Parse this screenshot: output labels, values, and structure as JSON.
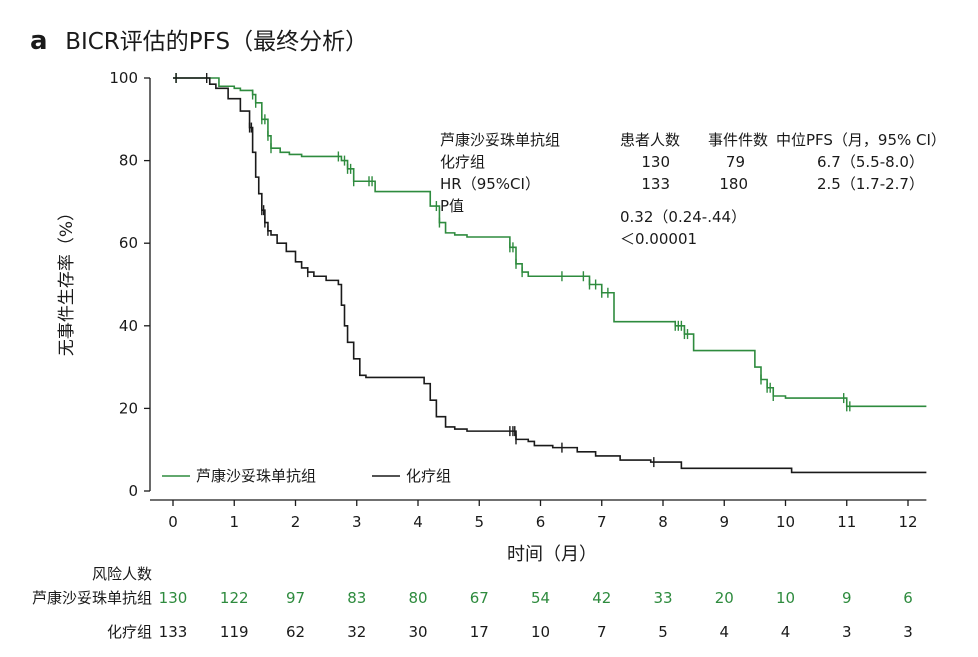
{
  "panel_letter": "a",
  "colors": {
    "treatment": "#2e8b3e",
    "control": "#1a1a1a",
    "axis": "#1a1a1a"
  },
  "chart_data": {
    "type": "line",
    "subtype": "kaplan-meier",
    "title": "BICR评估的PFS（最终分析）",
    "xlabel": "时间（月）",
    "ylabel": "无事件生存率（%）",
    "xlim": [
      0,
      12.3
    ],
    "ylim": [
      0,
      100
    ],
    "xticks": [
      0,
      1,
      2,
      3,
      4,
      5,
      6,
      7,
      8,
      9,
      10,
      11,
      12
    ],
    "yticks": [
      0,
      20,
      40,
      60,
      80,
      100
    ],
    "grid": false,
    "legend_position": "bottom-left",
    "series": [
      {
        "name": "芦康沙妥珠单抗组",
        "color": "#2e8b3e",
        "x": [
          0,
          0.7,
          0.75,
          1.0,
          1.1,
          1.3,
          1.35,
          1.45,
          1.55,
          1.6,
          1.75,
          1.9,
          2.1,
          2.55,
          2.75,
          2.85,
          2.95,
          3.3,
          3.4,
          4.1,
          4.2,
          4.35,
          4.45,
          4.6,
          4.8,
          5.4,
          5.5,
          5.6,
          5.7,
          5.8,
          6.6,
          6.8,
          7.0,
          7.2,
          7.9,
          8.2,
          8.35,
          8.5,
          9.4,
          9.5,
          9.6,
          9.7,
          9.8,
          10.0,
          10.9,
          11.0,
          12.3
        ],
        "y": [
          100,
          100,
          98,
          97.5,
          97,
          96,
          94,
          90,
          86,
          83,
          82,
          81.5,
          81,
          81,
          80,
          78,
          75,
          72.5,
          72.5,
          72.5,
          69,
          65,
          62.5,
          62,
          61.5,
          61.5,
          59,
          55,
          53,
          52,
          52,
          50,
          48,
          41,
          41,
          40,
          38,
          34,
          34,
          30,
          27,
          25,
          23,
          22.5,
          22.5,
          20.5,
          20.5
        ]
      },
      {
        "name": "化疗组",
        "color": "#1a1a1a",
        "x": [
          0,
          0.4,
          0.6,
          0.7,
          0.9,
          1.1,
          1.25,
          1.3,
          1.35,
          1.4,
          1.45,
          1.5,
          1.55,
          1.6,
          1.7,
          1.85,
          2.0,
          2.1,
          2.2,
          2.3,
          2.5,
          2.7,
          2.75,
          2.8,
          2.85,
          2.95,
          3.05,
          3.15,
          3.8,
          4.1,
          4.2,
          4.3,
          4.45,
          4.6,
          4.8,
          5.0,
          5.5,
          5.6,
          5.8,
          5.9,
          6.2,
          6.6,
          6.9,
          7.3,
          7.8,
          8.3,
          10.1,
          12.3
        ],
        "y": [
          100,
          100,
          98.5,
          97.5,
          95,
          92,
          88,
          82,
          76,
          72,
          68,
          65,
          63,
          62,
          60,
          58,
          55.5,
          54,
          53,
          52,
          51,
          50,
          45,
          40,
          36,
          32,
          28,
          27.5,
          27.5,
          26,
          22,
          18,
          15.5,
          15,
          14.5,
          14.5,
          14.5,
          12.5,
          12,
          11,
          10.5,
          9.5,
          8.5,
          7.5,
          7,
          5.5,
          4.5,
          4.5
        ]
      }
    ],
    "censor_marks": {
      "treatment": [
        0.05,
        1.3,
        1.35,
        1.45,
        1.5,
        1.55,
        1.6,
        2.7,
        2.8,
        2.85,
        2.9,
        2.95,
        3.2,
        3.25,
        4.3,
        4.35,
        5.5,
        5.55,
        5.6,
        5.7,
        6.35,
        6.7,
        6.8,
        6.9,
        7.0,
        7.1,
        8.2,
        8.25,
        8.3,
        8.35,
        8.4,
        9.6,
        9.7,
        9.75,
        9.8,
        10.95,
        11.0,
        11.05
      ],
      "control": [
        0.05,
        0.55,
        1.25,
        1.28,
        1.45,
        1.48,
        1.5,
        1.55,
        2.2,
        5.5,
        5.55,
        5.58,
        5.6,
        6.35,
        7.85
      ]
    },
    "annotations": {
      "header": [
        "芦康沙妥珠单抗组",
        "患者人数",
        "事件件数",
        "中位PFS（月，95% CI）"
      ],
      "row1": [
        "化疗组",
        "130",
        "79",
        "6.7（5.5-8.0）"
      ],
      "row2": [
        "HR（95%CI）",
        "133",
        "180",
        "2.5（1.7-2.7）"
      ],
      "row3": [
        "P值"
      ],
      "hr_value": "0.32（0.24-.44）",
      "p_value": "＜0.00001"
    },
    "risk_table": {
      "title": "风险人数",
      "rows": [
        {
          "label": "芦康沙妥珠单抗组",
          "color": "#2e8b3e",
          "values": [
            "130",
            "122",
            "97",
            "83",
            "80",
            "67",
            "54",
            "42",
            "33",
            "20",
            "10",
            "9",
            "6"
          ]
        },
        {
          "label": "化疗组",
          "color": "#1a1a1a",
          "values": [
            "133",
            "119",
            "62",
            "32",
            "30",
            "17",
            "10",
            "7",
            "5",
            "4",
            "4",
            "3",
            "3"
          ]
        }
      ]
    }
  }
}
